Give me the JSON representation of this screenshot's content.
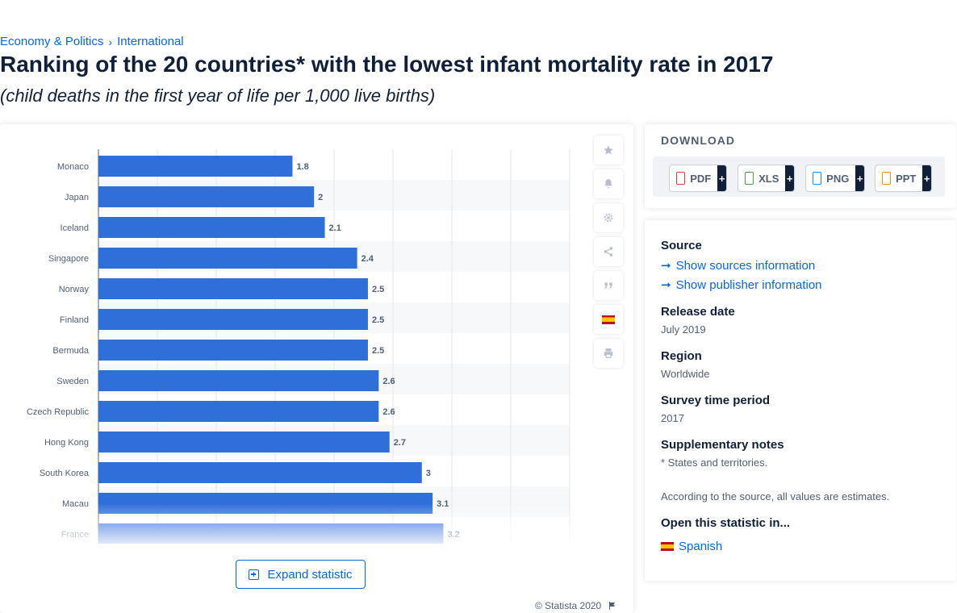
{
  "breadcrumb": {
    "parent": "Economy & Politics",
    "separator": "›",
    "current": "International"
  },
  "title": "Ranking of the 20 countries* with the lowest infant mortality rate in 2017",
  "subtitle": "(child deaths in the first year of life per 1,000 live births)",
  "toolbar": {
    "icons": [
      "star-icon",
      "bell-icon",
      "gear-icon",
      "share-icon",
      "quote-icon",
      "spanish-flag-icon",
      "print-icon"
    ]
  },
  "expand_label": "Expand statistic",
  "copyright": "© Statista 2020",
  "download": {
    "title": "DOWNLOAD",
    "buttons": [
      {
        "label": "PDF",
        "color": "#e53935"
      },
      {
        "label": "XLS",
        "color": "#43a047"
      },
      {
        "label": "PNG",
        "color": "#1e88e5"
      },
      {
        "label": "PPT",
        "color": "#fb8c00"
      }
    ],
    "plus": "+"
  },
  "info": {
    "source_label": "Source",
    "show_sources": "Show sources information",
    "show_publisher": "Show publisher information",
    "release_label": "Release date",
    "release_value": "July 2019",
    "region_label": "Region",
    "region_value": "Worldwide",
    "survey_label": "Survey time period",
    "survey_value": "2017",
    "notes_label": "Supplementary notes",
    "notes_value_1": "* States and territories.",
    "notes_value_2": "According to the source, all values are estimates.",
    "open_label": "Open this statistic in...",
    "open_language": "Spanish"
  },
  "colors": {
    "bar": "#2f6fda",
    "accent": "#0666e5",
    "text": "#0f2038"
  },
  "chart_data": {
    "type": "bar",
    "orientation": "horizontal",
    "categories": [
      "Monaco",
      "Japan",
      "Iceland",
      "Singapore",
      "Norway",
      "Finland",
      "Bermuda",
      "Sweden",
      "Czech Republic",
      "Hong Kong",
      "South Korea",
      "Macau",
      "France"
    ],
    "values": [
      1.8,
      2,
      2.1,
      2.4,
      2.5,
      2.5,
      2.5,
      2.6,
      2.6,
      2.7,
      3,
      3.1,
      3.2
    ],
    "value_labels": [
      "1.8",
      "2",
      "2.1",
      "2.4",
      "2.5",
      "2.5",
      "2.5",
      "2.6",
      "2.6",
      "2.7",
      "3",
      "3.1",
      "3.2"
    ],
    "xlim": [
      0,
      4
    ],
    "grid": true
  }
}
